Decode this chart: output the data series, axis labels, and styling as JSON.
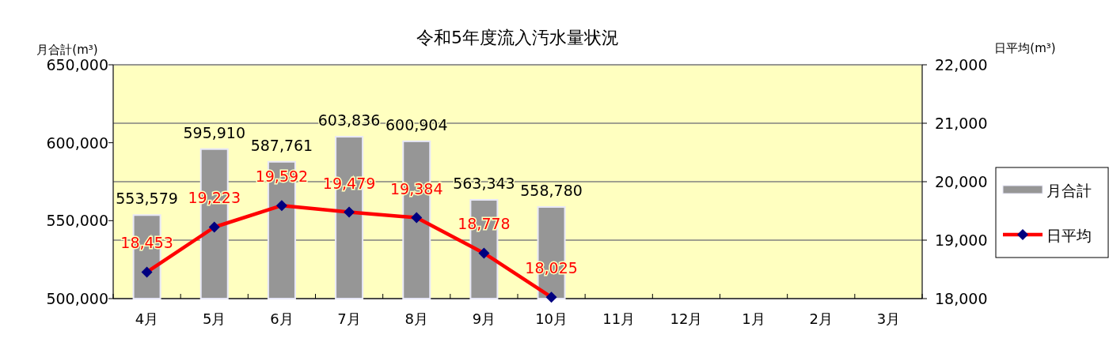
{
  "chart_data": {
    "type": "bar",
    "title": "令和5年度流入汚水量状況",
    "ylabel": "月合計(m³)",
    "y2label": "日平均(m³)",
    "categories": [
      "4月",
      "5月",
      "6月",
      "7月",
      "8月",
      "9月",
      "10月",
      "11月",
      "12月",
      "1月",
      "2月",
      "3月"
    ],
    "series": [
      {
        "name": "月合計",
        "color": "#969696",
        "values": [
          553579,
          595910,
          587761,
          603836,
          600904,
          563343,
          558780,
          null,
          null,
          null,
          null,
          null
        ],
        "value_labels": [
          "553,579",
          "595,910",
          "587,761",
          "603,836",
          "600,904",
          "563,343",
          "558,780",
          null,
          null,
          null,
          null,
          null
        ]
      },
      {
        "name": "日平均",
        "type": "line",
        "axis": "y2",
        "color": "#ff0000",
        "marker": "diamond",
        "values": [
          18453,
          19223,
          19592,
          19479,
          19384,
          18778,
          18025,
          null,
          null,
          null,
          null,
          null
        ],
        "value_labels": [
          "18,453",
          "19,223",
          "19,592",
          "19,479",
          "19,384",
          "18,778",
          "18,025",
          null,
          null,
          null,
          null,
          null
        ]
      }
    ],
    "ylim": [
      500000,
      650000
    ],
    "yticks": [
      {
        "value": 500000,
        "label": "500,000"
      },
      {
        "value": 550000,
        "label": "550,000"
      },
      {
        "value": 600000,
        "label": "600,000"
      },
      {
        "value": 650000,
        "label": "650,000"
      }
    ],
    "y2lim": [
      18000,
      22000
    ],
    "y2ticks": [
      {
        "value": 18000,
        "label": "18,000"
      },
      {
        "value": 19000,
        "label": "19,000"
      },
      {
        "value": 20000,
        "label": "20,000"
      },
      {
        "value": 21000,
        "label": "21,000"
      },
      {
        "value": 22000,
        "label": "22,000"
      }
    ],
    "grid": "y2",
    "legend": "right"
  }
}
